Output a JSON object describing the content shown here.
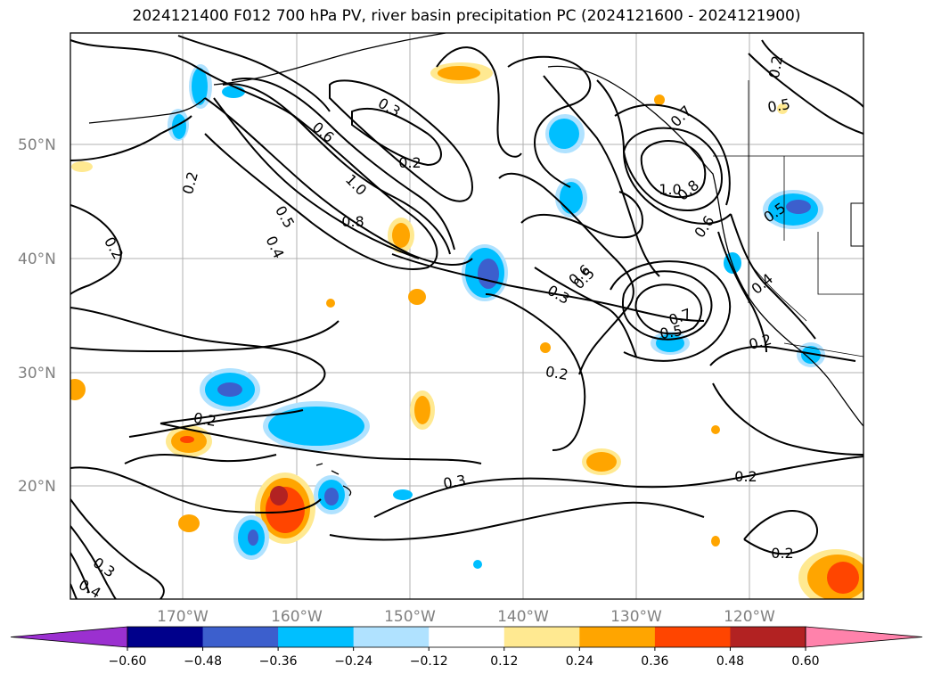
{
  "title": "2024121400 F012 700 hPa PV, river basin precipitation PC (2024121600 - 2024121900)",
  "lat_labels": [
    "50°N",
    "40°N",
    "30°N",
    "20°N"
  ],
  "lon_labels": [
    "170°W",
    "160°W",
    "150°W",
    "140°W",
    "130°W",
    "120°W"
  ],
  "contour_labels": [
    "0.3",
    "0.2",
    "0.6",
    "1.0",
    "0.8",
    "0.7",
    "0.5",
    "0.4",
    "0.2",
    "0.2",
    "0.5",
    "0.3",
    "0.2",
    "1.0",
    "0.8",
    "0.7",
    "0.5",
    "0.6",
    "0.4",
    "0.2",
    "0.2",
    "0.3",
    "0.2",
    "0.2",
    "0.3",
    "0.4",
    "0.5",
    "0.6",
    "0.5",
    "0.2"
  ],
  "colorbar": {
    "ticks": [
      "−0.60",
      "−0.48",
      "−0.36",
      "−0.24",
      "−0.12",
      "0.12",
      "0.24",
      "0.36",
      "0.48",
      "0.60"
    ],
    "colors": [
      "#9b30d0",
      "#00008b",
      "#3c5fcd",
      "#00bfff",
      "#b0e2ff",
      "#ffffff",
      "#ffe991",
      "#ffa500",
      "#ff4500",
      "#b22222",
      "#ff82ab"
    ]
  }
}
